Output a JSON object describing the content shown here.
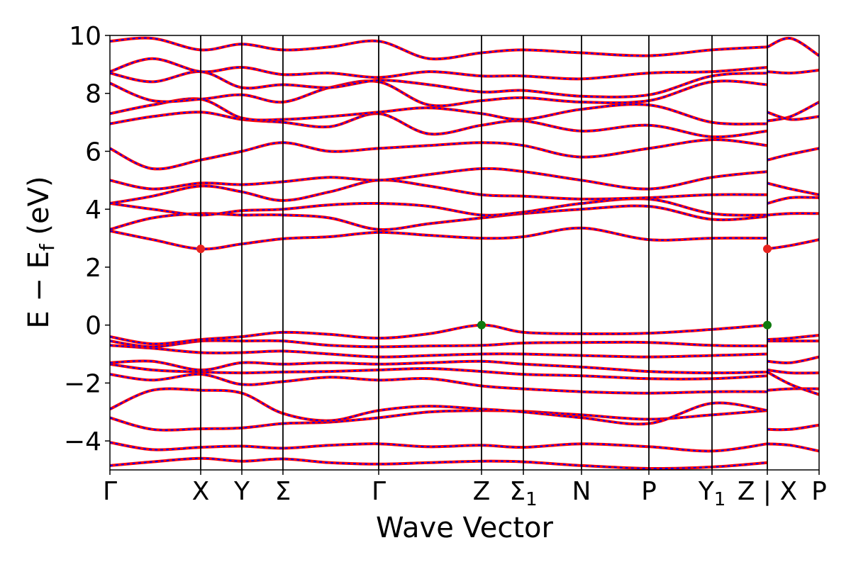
{
  "chart_data": {
    "type": "line",
    "title": "",
    "xlabel": "Wave Vector",
    "ylabel": "E − E_f (eV)",
    "ylabel_parts": {
      "main": "E − E",
      "sub": "f",
      "unit": " (eV)"
    },
    "ylim": [
      -5,
      10
    ],
    "yticks": [
      {
        "value": -4,
        "label": "−4"
      },
      {
        "value": -2,
        "label": "−2"
      },
      {
        "value": 0,
        "label": "0"
      },
      {
        "value": 2,
        "label": "2"
      },
      {
        "value": 4,
        "label": "4"
      },
      {
        "value": 6,
        "label": "6"
      },
      {
        "value": 8,
        "label": "8"
      },
      {
        "value": 10,
        "label": "10"
      }
    ],
    "x_range": [
      0,
      1
    ],
    "kpoints": [
      {
        "label": "Γ",
        "sub": "",
        "x": 0.0
      },
      {
        "label": "X",
        "sub": "",
        "x": 0.128
      },
      {
        "label": "Y",
        "sub": "",
        "x": 0.186
      },
      {
        "label": "Σ",
        "sub": "",
        "x": 0.244
      },
      {
        "label": "Γ",
        "sub": "",
        "x": 0.379
      },
      {
        "label": "Z",
        "sub": "",
        "x": 0.524
      },
      {
        "label": "Σ",
        "sub": "1",
        "x": 0.583
      },
      {
        "label": "N",
        "sub": "",
        "x": 0.665
      },
      {
        "label": "P",
        "sub": "",
        "x": 0.76
      },
      {
        "label": "Y",
        "sub": "1",
        "x": 0.849
      },
      {
        "label": "Z | X",
        "sub": "",
        "x": 0.927
      },
      {
        "label": "P",
        "sub": "",
        "x": 1.0
      }
    ],
    "line_colors": {
      "dft": "#ff0000",
      "fit": "#0000ff",
      "vertical": "#000000"
    },
    "markers": [
      {
        "name": "CBM",
        "x": 0.128,
        "y": 2.63,
        "color": "#e8231f"
      },
      {
        "name": "CBM",
        "x": 0.927,
        "y": 2.63,
        "color": "#e8231f"
      },
      {
        "name": "VBM",
        "x": 0.524,
        "y": 0.0,
        "color": "#0f7a0f"
      },
      {
        "name": "VBM",
        "x": 0.927,
        "y": 0.0,
        "color": "#0f7a0f"
      }
    ],
    "bands": [
      {
        "x": [
          0,
          0.06,
          0.128,
          0.186,
          0.244,
          0.31,
          0.379,
          0.45,
          0.524,
          0.583,
          0.665,
          0.76,
          0.849,
          0.927
        ],
        "y": [
          -4.85,
          -4.72,
          -4.6,
          -4.7,
          -4.62,
          -4.75,
          -4.8,
          -4.75,
          -4.7,
          -4.72,
          -4.85,
          -4.95,
          -4.9,
          -4.75
        ]
      },
      {
        "x": [
          0,
          0.06,
          0.128,
          0.186,
          0.244,
          0.31,
          0.379,
          0.45,
          0.524,
          0.583,
          0.665,
          0.76,
          0.849,
          0.927
        ],
        "y": [
          -4.05,
          -4.3,
          -4.22,
          -4.18,
          -4.25,
          -4.15,
          -4.1,
          -4.2,
          -4.15,
          -4.22,
          -4.1,
          -4.2,
          -4.35,
          -4.1
        ]
      },
      {
        "x": [
          0,
          0.06,
          0.128,
          0.186,
          0.244,
          0.31,
          0.379,
          0.45,
          0.524,
          0.583,
          0.665,
          0.76,
          0.849,
          0.927
        ],
        "y": [
          -3.2,
          -3.6,
          -3.58,
          -3.55,
          -3.4,
          -3.35,
          -3.2,
          -3.0,
          -2.95,
          -2.98,
          -3.1,
          -3.25,
          -3.1,
          -2.95
        ]
      },
      {
        "x": [
          0,
          0.06,
          0.128,
          0.186,
          0.244,
          0.31,
          0.379,
          0.45,
          0.524,
          0.583,
          0.665,
          0.76,
          0.849,
          0.927
        ],
        "y": [
          -2.9,
          -2.25,
          -2.25,
          -2.35,
          -3.05,
          -3.3,
          -2.95,
          -2.8,
          -2.9,
          -3.0,
          -3.2,
          -3.4,
          -2.7,
          -2.95
        ]
      },
      {
        "x": [
          0,
          0.06,
          0.128,
          0.186,
          0.244,
          0.31,
          0.379,
          0.45,
          0.524,
          0.583,
          0.665,
          0.76,
          0.849,
          0.927
        ],
        "y": [
          -1.7,
          -1.9,
          -1.7,
          -2.05,
          -1.95,
          -1.8,
          -1.9,
          -1.85,
          -2.1,
          -2.2,
          -2.3,
          -2.35,
          -2.3,
          -2.3
        ]
      },
      {
        "x": [
          0,
          0.06,
          0.128,
          0.186,
          0.244,
          0.31,
          0.379,
          0.45,
          0.524,
          0.583,
          0.665,
          0.76,
          0.849,
          0.927
        ],
        "y": [
          -1.35,
          -1.55,
          -1.62,
          -1.65,
          -1.62,
          -1.6,
          -1.55,
          -1.5,
          -1.6,
          -1.7,
          -1.75,
          -1.85,
          -1.85,
          -1.75
        ]
      },
      {
        "x": [
          0,
          0.06,
          0.128,
          0.186,
          0.244,
          0.31,
          0.379,
          0.45,
          0.524,
          0.583,
          0.665,
          0.76,
          0.849,
          0.927
        ],
        "y": [
          -1.3,
          -1.25,
          -1.55,
          -1.3,
          -1.35,
          -1.3,
          -1.35,
          -1.3,
          -1.25,
          -1.35,
          -1.45,
          -1.6,
          -1.65,
          -1.62
        ]
      },
      {
        "x": [
          0,
          0.06,
          0.128,
          0.186,
          0.244,
          0.31,
          0.379,
          0.45,
          0.524,
          0.583,
          0.665,
          0.76,
          0.849,
          0.927
        ],
        "y": [
          -0.7,
          -0.8,
          -0.95,
          -0.95,
          -0.9,
          -1.0,
          -1.1,
          -1.05,
          -1.0,
          -1.0,
          -1.05,
          -1.1,
          -1.05,
          -1.0
        ]
      },
      {
        "x": [
          0,
          0.06,
          0.128,
          0.186,
          0.244,
          0.31,
          0.379,
          0.45,
          0.524,
          0.583,
          0.665,
          0.76,
          0.849,
          0.927
        ],
        "y": [
          -0.55,
          -0.75,
          -0.55,
          -0.55,
          -0.55,
          -0.7,
          -0.75,
          -0.72,
          -0.7,
          -0.62,
          -0.6,
          -0.6,
          -0.7,
          -0.72
        ]
      },
      {
        "x": [
          0,
          0.06,
          0.128,
          0.186,
          0.244,
          0.31,
          0.379,
          0.45,
          0.524,
          0.583,
          0.665,
          0.76,
          0.849,
          0.927
        ],
        "y": [
          -0.4,
          -0.65,
          -0.5,
          -0.4,
          -0.25,
          -0.32,
          -0.45,
          -0.3,
          0.0,
          -0.25,
          -0.3,
          -0.28,
          -0.15,
          0.0
        ]
      },
      {
        "x": [
          0,
          0.06,
          0.128,
          0.186,
          0.244,
          0.31,
          0.379,
          0.45,
          0.524,
          0.583,
          0.665,
          0.76,
          0.849,
          0.927
        ],
        "y": [
          3.25,
          2.95,
          2.63,
          2.8,
          2.98,
          3.05,
          3.2,
          3.1,
          3.0,
          3.05,
          3.35,
          2.95,
          3.0,
          3.0
        ]
      },
      {
        "x": [
          0,
          0.06,
          0.128,
          0.186,
          0.244,
          0.31,
          0.379,
          0.45,
          0.524,
          0.583,
          0.665,
          0.76,
          0.849,
          0.927
        ],
        "y": [
          3.3,
          3.7,
          3.85,
          3.8,
          3.8,
          3.7,
          3.3,
          3.5,
          3.7,
          3.85,
          4.0,
          4.1,
          3.65,
          3.75
        ]
      },
      {
        "x": [
          0,
          0.06,
          0.128,
          0.186,
          0.244,
          0.31,
          0.379,
          0.45,
          0.524,
          0.583,
          0.665,
          0.76,
          0.849,
          0.927
        ],
        "y": [
          4.2,
          4.0,
          3.8,
          3.95,
          4.0,
          4.15,
          4.2,
          4.1,
          3.8,
          3.9,
          4.2,
          4.35,
          3.85,
          3.8
        ]
      },
      {
        "x": [
          0,
          0.06,
          0.128,
          0.186,
          0.244,
          0.31,
          0.379,
          0.45,
          0.524,
          0.583,
          0.665,
          0.76,
          0.849,
          0.927
        ],
        "y": [
          4.2,
          4.45,
          4.8,
          4.6,
          4.3,
          4.6,
          5.0,
          4.8,
          4.5,
          4.45,
          4.35,
          4.4,
          4.5,
          4.5
        ]
      },
      {
        "x": [
          0,
          0.06,
          0.128,
          0.186,
          0.244,
          0.31,
          0.379,
          0.45,
          0.524,
          0.583,
          0.665,
          0.76,
          0.849,
          0.927
        ],
        "y": [
          5.0,
          4.7,
          4.9,
          4.85,
          4.95,
          5.1,
          5.0,
          5.2,
          5.4,
          5.3,
          5.0,
          4.7,
          5.1,
          5.3
        ]
      },
      {
        "x": [
          0,
          0.06,
          0.128,
          0.186,
          0.244,
          0.31,
          0.379,
          0.45,
          0.524,
          0.583,
          0.665,
          0.76,
          0.849,
          0.927
        ],
        "y": [
          6.1,
          5.4,
          5.7,
          6.0,
          6.3,
          6.0,
          6.1,
          6.2,
          6.3,
          6.2,
          5.8,
          6.1,
          6.4,
          6.2
        ]
      },
      {
        "x": [
          0,
          0.06,
          0.128,
          0.186,
          0.244,
          0.31,
          0.379,
          0.45,
          0.524,
          0.583,
          0.665,
          0.76,
          0.849,
          0.927
        ],
        "y": [
          6.95,
          7.2,
          7.35,
          7.1,
          7.0,
          6.85,
          7.3,
          6.6,
          6.9,
          7.05,
          6.7,
          6.9,
          6.5,
          6.7
        ]
      },
      {
        "x": [
          0,
          0.06,
          0.128,
          0.186,
          0.244,
          0.31,
          0.379,
          0.45,
          0.524,
          0.583,
          0.665,
          0.76,
          0.849,
          0.927
        ],
        "y": [
          7.3,
          7.6,
          7.8,
          7.15,
          7.1,
          7.2,
          7.35,
          7.5,
          7.3,
          7.1,
          7.45,
          7.6,
          7.0,
          6.95
        ]
      },
      {
        "x": [
          0,
          0.06,
          0.128,
          0.186,
          0.244,
          0.31,
          0.379,
          0.45,
          0.524,
          0.583,
          0.665,
          0.76,
          0.849,
          0.927
        ],
        "y": [
          8.35,
          7.75,
          7.8,
          7.95,
          7.7,
          8.2,
          8.4,
          7.6,
          7.75,
          7.85,
          7.7,
          7.75,
          8.4,
          8.3
        ]
      },
      {
        "x": [
          0,
          0.06,
          0.128,
          0.186,
          0.244,
          0.31,
          0.379,
          0.45,
          0.524,
          0.583,
          0.665,
          0.76,
          0.849,
          0.927
        ],
        "y": [
          8.7,
          8.4,
          8.75,
          8.2,
          8.3,
          8.2,
          8.45,
          8.3,
          8.05,
          8.1,
          7.9,
          7.95,
          8.6,
          8.7
        ]
      },
      {
        "x": [
          0,
          0.06,
          0.128,
          0.186,
          0.244,
          0.31,
          0.379,
          0.45,
          0.524,
          0.583,
          0.665,
          0.76,
          0.849,
          0.927
        ],
        "y": [
          8.75,
          9.2,
          8.75,
          8.9,
          8.65,
          8.7,
          8.55,
          8.75,
          8.6,
          8.6,
          8.5,
          8.7,
          8.75,
          8.9
        ]
      },
      {
        "x": [
          0,
          0.06,
          0.128,
          0.186,
          0.244,
          0.31,
          0.379,
          0.45,
          0.524,
          0.583,
          0.665,
          0.76,
          0.849,
          0.927
        ],
        "y": [
          9.8,
          9.9,
          9.5,
          9.7,
          9.5,
          9.6,
          9.8,
          9.2,
          9.4,
          9.5,
          9.4,
          9.3,
          9.5,
          9.6
        ]
      },
      {
        "x": [
          0.927,
          0.96,
          1.0
        ],
        "y": [
          -4.1,
          -4.15,
          -4.35
        ]
      },
      {
        "x": [
          0.927,
          0.96,
          1.0
        ],
        "y": [
          -3.6,
          -3.6,
          -3.45
        ]
      },
      {
        "x": [
          0.927,
          0.96,
          1.0
        ],
        "y": [
          -2.25,
          -2.2,
          -2.2
        ]
      },
      {
        "x": [
          0.927,
          0.96,
          1.0
        ],
        "y": [
          -1.62,
          -2.05,
          -2.4
        ]
      },
      {
        "x": [
          0.927,
          0.96,
          1.0
        ],
        "y": [
          -1.55,
          -1.65,
          -1.65
        ]
      },
      {
        "x": [
          0.927,
          0.96,
          1.0
        ],
        "y": [
          -1.25,
          -1.3,
          -1.1
        ]
      },
      {
        "x": [
          0.927,
          0.96,
          1.0
        ],
        "y": [
          -0.55,
          -0.55,
          -0.55
        ]
      },
      {
        "x": [
          0.927,
          0.96,
          1.0
        ],
        "y": [
          -0.5,
          -0.45,
          -0.35
        ]
      },
      {
        "x": [
          0.927,
          0.96,
          1.0
        ],
        "y": [
          2.63,
          2.75,
          2.95
        ]
      },
      {
        "x": [
          0.927,
          0.96,
          1.0
        ],
        "y": [
          3.8,
          3.85,
          3.85
        ]
      },
      {
        "x": [
          0.927,
          0.96,
          1.0
        ],
        "y": [
          4.2,
          4.4,
          4.4
        ]
      },
      {
        "x": [
          0.927,
          0.96,
          1.0
        ],
        "y": [
          4.9,
          4.7,
          4.5
        ]
      },
      {
        "x": [
          0.927,
          0.96,
          1.0
        ],
        "y": [
          5.7,
          5.9,
          6.1
        ]
      },
      {
        "x": [
          0.927,
          0.96,
          1.0
        ],
        "y": [
          7.05,
          7.2,
          7.7
        ]
      },
      {
        "x": [
          0.927,
          0.96,
          1.0
        ],
        "y": [
          7.35,
          7.1,
          7.2
        ]
      },
      {
        "x": [
          0.927,
          0.96,
          1.0
        ],
        "y": [
          8.75,
          8.7,
          8.8
        ]
      },
      {
        "x": [
          0.927,
          0.96,
          1.0
        ],
        "y": [
          9.6,
          9.9,
          9.3
        ]
      }
    ]
  }
}
